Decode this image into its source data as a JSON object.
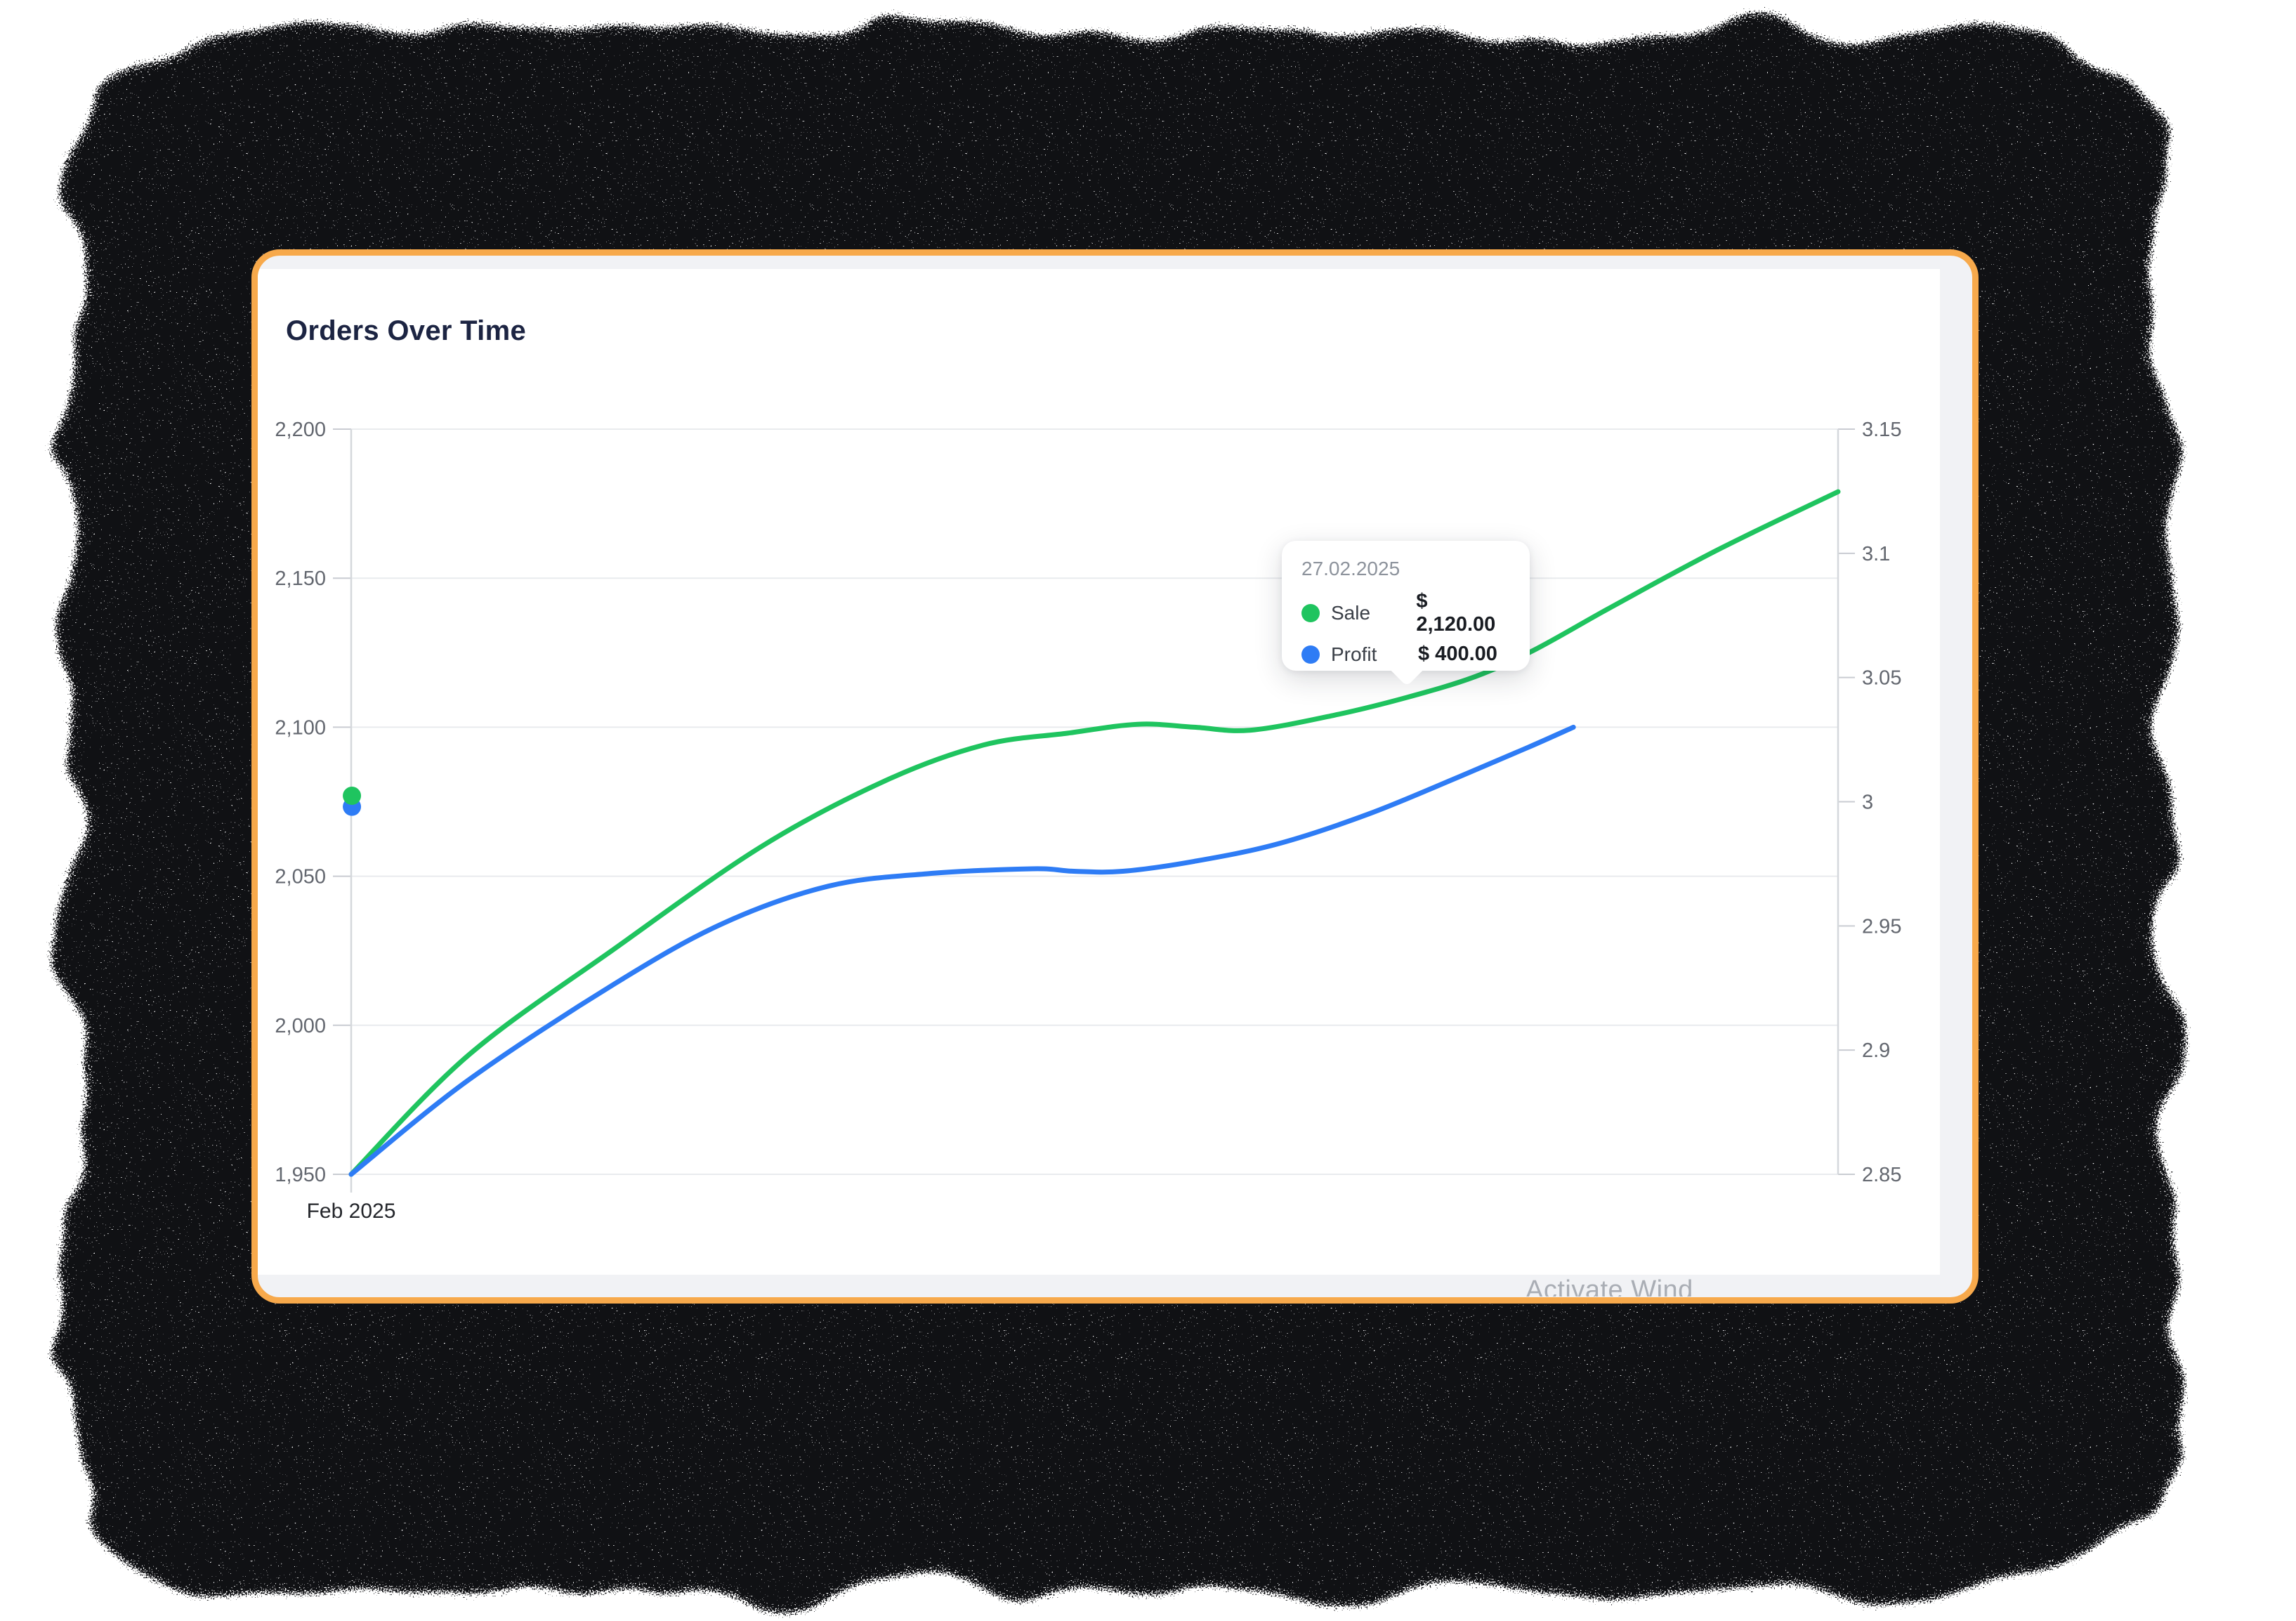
{
  "window": {
    "border_color": "#F7A94B",
    "background": "#F1F2F5"
  },
  "panel": {
    "title": "Orders Over Time",
    "background": "#FFFFFF"
  },
  "watermark": {
    "text": "Activate Wind"
  },
  "tooltip": {
    "date": "27.02.2025",
    "rows": [
      {
        "label": "Sale",
        "value": "$ 2,120.00",
        "color": "#1FC45F"
      },
      {
        "label": "Profit",
        "value": "$ 400.00",
        "color": "#2E7CF5"
      }
    ]
  },
  "chart_data": {
    "type": "line",
    "title": "Orders Over Time",
    "grid": "horizontal",
    "legend_position": "none",
    "x_axis": {
      "ticks": [
        "Feb 2025"
      ]
    },
    "y_axis_left": {
      "range": [
        1950,
        2200
      ],
      "ticks": [
        "2,200",
        "2,150",
        "2,100",
        "2,050",
        "2,000",
        "1,950"
      ],
      "tick_values": [
        2200,
        2150,
        2100,
        2050,
        2000,
        1950
      ]
    },
    "y_axis_right": {
      "range": [
        2.85,
        3.15
      ],
      "ticks": [
        "3.15",
        "3.1",
        "3.05",
        "3",
        "2.95",
        "2.9",
        "2.85"
      ],
      "tick_values": [
        3.15,
        3.1,
        3.05,
        3.0,
        2.95,
        2.9,
        2.85
      ]
    },
    "series": [
      {
        "name": "Sale",
        "color": "#1FC45F",
        "axis": "left",
        "x": [
          0,
          0.079,
          0.178,
          0.276,
          0.359,
          0.425,
          0.482,
          0.529,
          0.567,
          0.605,
          0.661,
          0.71,
          0.756,
          0.796,
          0.85,
          0.921,
          1.0
        ],
        "values": [
          1950,
          1990,
          2026,
          2060,
          2082,
          2094,
          2098,
          2101,
          2100,
          2099,
          2104,
          2110,
          2117,
          2126,
          2141,
          2160,
          2179
        ]
      },
      {
        "name": "Profit",
        "color": "#2E7CF5",
        "axis": "right",
        "x": [
          0,
          0.079,
          0.178,
          0.25,
          0.321,
          0.387,
          0.458,
          0.486,
          0.519,
          0.567,
          0.623,
          0.684,
          0.745,
          0.792,
          0.822
        ],
        "values": [
          2.85,
          2.888,
          2.927,
          2.951,
          2.966,
          2.971,
          2.973,
          2.972,
          2.972,
          2.976,
          2.983,
          2.995,
          3.01,
          3.022,
          3.03
        ]
      }
    ],
    "point_markers": [
      {
        "series": "Profit",
        "axis": "right",
        "x": 0.0005,
        "value": 2.998
      },
      {
        "series": "Sale",
        "axis": "left",
        "x": 0.0005,
        "value": 2077
      }
    ],
    "tooltip_anchor_x": 0.71
  }
}
